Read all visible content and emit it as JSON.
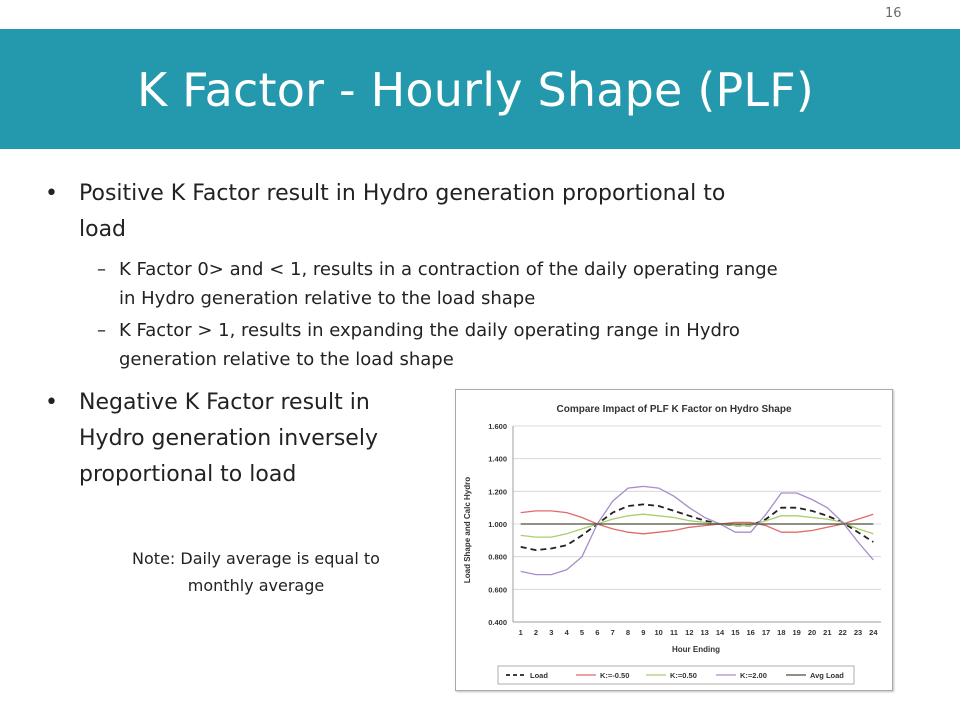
{
  "page_number": "16",
  "title": "K Factor - Hourly Shape (PLF)",
  "bullets": [
    {
      "text_line1": "Positive K Factor result in Hydro generation proportional to",
      "text_line2": "load"
    },
    {
      "text_line1": "Negative K Factor result in",
      "text_line2": "Hydro generation inversely",
      "text_line3": "proportional to load"
    }
  ],
  "sub_bullets": [
    {
      "line1": "K Factor 0> and < 1, results in a contraction of the daily operating range",
      "line2": "in Hydro generation relative to the load shape"
    },
    {
      "line1": "K Factor > 1, results in expanding the daily operating range in Hydro",
      "line2": "generation relative to the load shape"
    }
  ],
  "note": {
    "line1": "Note: Daily average is equal to",
    "line2": "monthly average"
  },
  "chart_data": {
    "type": "line",
    "title": "Compare Impact of PLF K Factor on Hydro Shape",
    "xlabel": "Hour Ending",
    "ylabel": "Load Shape and Calc Hydro",
    "ylim": [
      0.4,
      1.6
    ],
    "yticks": [
      "0.400",
      "0.600",
      "0.800",
      "1.000",
      "1.200",
      "1.400",
      "1.600"
    ],
    "x": [
      "1",
      "2",
      "3",
      "4",
      "5",
      "6",
      "7",
      "8",
      "9",
      "10",
      "11",
      "12",
      "13",
      "14",
      "15",
      "16",
      "17",
      "18",
      "19",
      "20",
      "21",
      "22",
      "23",
      "24"
    ],
    "grid": "horizontal",
    "legend_position": "bottom",
    "series": [
      {
        "name": "Load",
        "color": "#222222",
        "dash": "6,4",
        "values": [
          0.86,
          0.84,
          0.85,
          0.87,
          0.93,
          1.0,
          1.07,
          1.11,
          1.12,
          1.11,
          1.08,
          1.05,
          1.02,
          1.0,
          0.99,
          0.99,
          1.03,
          1.1,
          1.1,
          1.08,
          1.05,
          1.01,
          0.95,
          0.89
        ]
      },
      {
        "name": "K:=-0.50",
        "color": "#e06b68",
        "dash": "",
        "values": [
          1.07,
          1.08,
          1.08,
          1.07,
          1.04,
          1.0,
          0.97,
          0.95,
          0.94,
          0.95,
          0.96,
          0.98,
          0.99,
          1.0,
          1.01,
          1.01,
          0.99,
          0.95,
          0.95,
          0.96,
          0.98,
          1.0,
          1.03,
          1.06
        ]
      },
      {
        "name": "K:=0.50",
        "color": "#a8cf6a",
        "dash": "",
        "values": [
          0.93,
          0.92,
          0.92,
          0.94,
          0.97,
          1.0,
          1.03,
          1.05,
          1.06,
          1.05,
          1.04,
          1.02,
          1.01,
          1.0,
          0.99,
          0.99,
          1.02,
          1.05,
          1.05,
          1.04,
          1.03,
          1.01,
          0.97,
          0.94
        ]
      },
      {
        "name": "K:=2.00",
        "color": "#a78ccc",
        "dash": "",
        "values": [
          0.71,
          0.69,
          0.69,
          0.72,
          0.8,
          1.0,
          1.14,
          1.22,
          1.23,
          1.22,
          1.17,
          1.1,
          1.04,
          1.0,
          0.95,
          0.95,
          1.06,
          1.19,
          1.19,
          1.15,
          1.1,
          1.01,
          0.89,
          0.78
        ]
      },
      {
        "name": "Avg Load",
        "color": "#4d4d3d",
        "dash": "",
        "values": [
          1.0,
          1.0,
          1.0,
          1.0,
          1.0,
          1.0,
          1.0,
          1.0,
          1.0,
          1.0,
          1.0,
          1.0,
          1.0,
          1.0,
          1.0,
          1.0,
          1.0,
          1.0,
          1.0,
          1.0,
          1.0,
          1.0,
          1.0,
          1.0
        ]
      }
    ]
  }
}
